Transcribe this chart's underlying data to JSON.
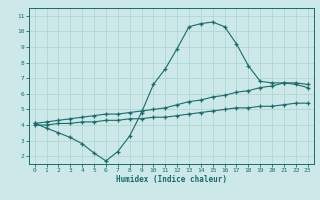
{
  "xlabel": "Humidex (Indice chaleur)",
  "ylabel": "",
  "xlim": [
    -0.5,
    23.5
  ],
  "ylim": [
    1.5,
    11.5
  ],
  "yticks": [
    2,
    3,
    4,
    5,
    6,
    7,
    8,
    9,
    10,
    11
  ],
  "xticks": [
    0,
    1,
    2,
    3,
    4,
    5,
    6,
    7,
    8,
    9,
    10,
    11,
    12,
    13,
    14,
    15,
    16,
    17,
    18,
    19,
    20,
    21,
    22,
    23
  ],
  "bg_color": "#cce8e8",
  "line_color": "#1a6b6b",
  "grid_color": "#aad4d0",
  "line1_x": [
    0,
    1,
    2,
    3,
    4,
    5,
    6,
    7,
    8,
    9,
    10,
    11,
    12,
    13,
    14,
    15,
    16,
    17,
    18,
    19,
    20,
    21,
    22,
    23
  ],
  "line1_y": [
    4.1,
    3.8,
    3.5,
    3.2,
    2.8,
    2.2,
    1.7,
    2.3,
    3.3,
    4.8,
    6.6,
    7.6,
    8.9,
    10.3,
    10.5,
    10.6,
    10.3,
    9.2,
    7.8,
    6.8,
    6.7,
    6.7,
    6.6,
    6.4
  ],
  "line2_x": [
    0,
    1,
    2,
    3,
    4,
    5,
    6,
    7,
    8,
    9,
    10,
    11,
    12,
    13,
    14,
    15,
    16,
    17,
    18,
    19,
    20,
    21,
    22,
    23
  ],
  "line2_y": [
    4.1,
    4.2,
    4.3,
    4.4,
    4.5,
    4.6,
    4.7,
    4.7,
    4.8,
    4.9,
    5.0,
    5.1,
    5.3,
    5.5,
    5.6,
    5.8,
    5.9,
    6.1,
    6.2,
    6.4,
    6.5,
    6.7,
    6.7,
    6.6
  ],
  "line3_x": [
    0,
    1,
    2,
    3,
    4,
    5,
    6,
    7,
    8,
    9,
    10,
    11,
    12,
    13,
    14,
    15,
    16,
    17,
    18,
    19,
    20,
    21,
    22,
    23
  ],
  "line3_y": [
    4.0,
    4.0,
    4.1,
    4.1,
    4.2,
    4.2,
    4.3,
    4.3,
    4.4,
    4.4,
    4.5,
    4.5,
    4.6,
    4.7,
    4.8,
    4.9,
    5.0,
    5.1,
    5.1,
    5.2,
    5.2,
    5.3,
    5.4,
    5.4
  ]
}
